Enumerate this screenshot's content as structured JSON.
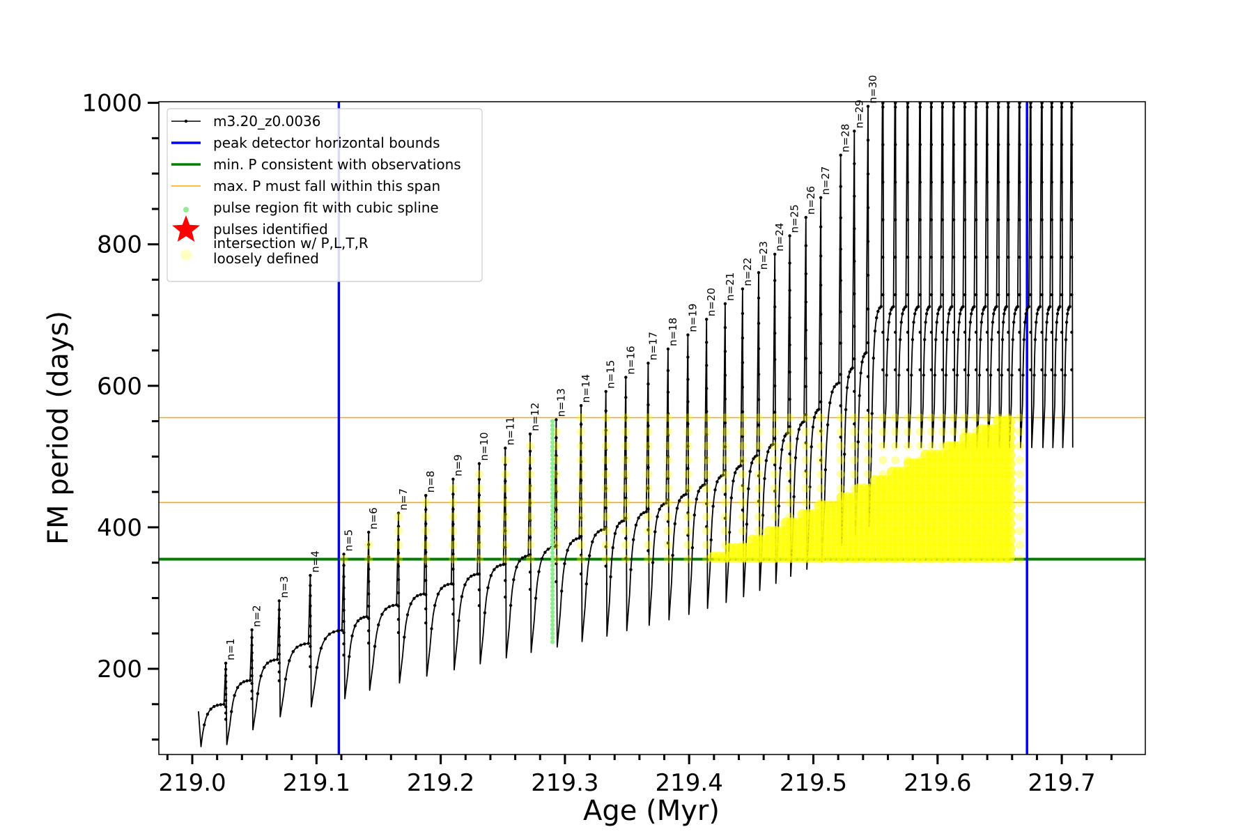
{
  "chart_data": {
    "type": "line",
    "title": "",
    "xlabel": "Age (Myr)",
    "ylabel": "FM period (days)",
    "xlim": [
      218.985,
      219.765
    ],
    "ylim": [
      75,
      1000
    ],
    "x_major_ticks": [
      219.0,
      219.1,
      219.2,
      219.3,
      219.4,
      219.5,
      219.6,
      219.7
    ],
    "x_tick_labels": [
      "219.0",
      "219.1",
      "219.2",
      "219.3",
      "219.4",
      "219.5",
      "219.6",
      "219.7"
    ],
    "y_major_ticks": [
      200,
      400,
      600,
      800,
      1000
    ],
    "y_tick_labels": [
      "200",
      "400",
      "600",
      "800",
      "1000"
    ],
    "grid": false,
    "legend_position": "top-left",
    "colors": {
      "model": "#000000",
      "bounds": "#0000ff",
      "min_p": "#007f00",
      "max_p": "#ffa500",
      "spline": "#90ee90",
      "pulse": "#ff0000",
      "intersection": "#ffff00"
    },
    "legend": [
      {
        "label": "m3.20_z0.0036",
        "marker": "line-dot",
        "color": "#000000"
      },
      {
        "label": "peak detector horizontal bounds",
        "marker": "line",
        "color": "#0000ff"
      },
      {
        "label": "min. P consistent with observations",
        "marker": "line",
        "color": "#007f00"
      },
      {
        "label": "max. P must fall within this span",
        "marker": "thin-line",
        "color": "#ffa500"
      },
      {
        "label": "pulse region fit with cubic spline",
        "marker": "dot",
        "color": "#90ee90"
      },
      {
        "label": "pulses identified",
        "marker": "star",
        "color": "#ff0000"
      },
      {
        "label": "intersection w/ P,L,T,R",
        "label_line2": "loosely defined",
        "marker": "circle",
        "color": "#ffffaa"
      }
    ],
    "vertical_lines": [
      219.118,
      219.672
    ],
    "min_period": 355,
    "max_period_span": [
      435,
      555
    ],
    "pulses": [
      {
        "label": "n=1",
        "age": 219.027,
        "peak": 208
      },
      {
        "label": "n=2",
        "age": 219.048,
        "peak": 255
      },
      {
        "label": "n=3",
        "age": 219.07,
        "peak": 296
      },
      {
        "label": "n=4",
        "age": 219.095,
        "peak": 332
      },
      {
        "label": "n=5",
        "age": 219.122,
        "peak": 362
      },
      {
        "label": "n=6",
        "age": 219.142,
        "peak": 393
      },
      {
        "label": "n=7",
        "age": 219.166,
        "peak": 420
      },
      {
        "label": "n=8",
        "age": 219.188,
        "peak": 445
      },
      {
        "label": "n=9",
        "age": 219.21,
        "peak": 468
      },
      {
        "label": "n=10",
        "age": 219.231,
        "peak": 490
      },
      {
        "label": "n=11",
        "age": 219.252,
        "peak": 512
      },
      {
        "label": "n=12",
        "age": 219.272,
        "peak": 532
      },
      {
        "label": "n=13",
        "age": 219.293,
        "peak": 552
      },
      {
        "label": "n=14",
        "age": 219.313,
        "peak": 572
      },
      {
        "label": "n=15",
        "age": 219.333,
        "peak": 592
      },
      {
        "label": "n=16",
        "age": 219.349,
        "peak": 612
      },
      {
        "label": "n=17",
        "age": 219.367,
        "peak": 632
      },
      {
        "label": "n=18",
        "age": 219.383,
        "peak": 652
      },
      {
        "label": "n=19",
        "age": 219.399,
        "peak": 672
      },
      {
        "label": "n=20",
        "age": 219.414,
        "peak": 694
      },
      {
        "label": "n=21",
        "age": 219.429,
        "peak": 716
      },
      {
        "label": "n=22",
        "age": 219.443,
        "peak": 737
      },
      {
        "label": "n=23",
        "age": 219.456,
        "peak": 760
      },
      {
        "label": "n=24",
        "age": 219.469,
        "peak": 786
      },
      {
        "label": "n=25",
        "age": 219.481,
        "peak": 812
      },
      {
        "label": "n=26",
        "age": 219.494,
        "peak": 838
      },
      {
        "label": "n=27",
        "age": 219.506,
        "peak": 866
      },
      {
        "label": "n=28",
        "age": 219.522,
        "peak": 926
      },
      {
        "label": "n=29",
        "age": 219.533,
        "peak": 960
      },
      {
        "label": "n=30",
        "age": 219.544,
        "peak": 995
      }
    ],
    "late_spikes": [
      219.556,
      219.566,
      219.576,
      219.586,
      219.595,
      219.604,
      219.613,
      219.622,
      219.631,
      219.64,
      219.649,
      219.657,
      219.666,
      219.675,
      219.684,
      219.692,
      219.7,
      219.708
    ],
    "spline_pulse_age": 219.29,
    "spline_range": [
      238,
      555
    ]
  }
}
